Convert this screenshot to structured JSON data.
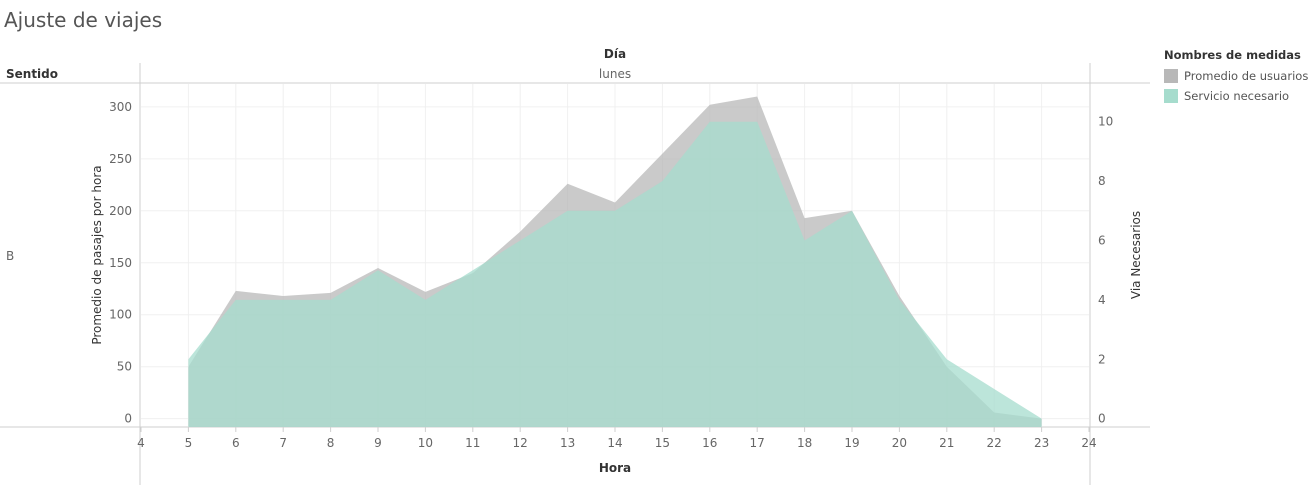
{
  "title": "Ajuste de viajes",
  "header": {
    "column_field": "Día",
    "column_value": "lunes",
    "row_field": "Sentido",
    "row_value": "B"
  },
  "legend": {
    "title": "Nombres de medidas",
    "items": [
      {
        "label": "Promedio de usuarios",
        "color": "#b8b8b8"
      },
      {
        "label": "Servicio necesario",
        "color": "#a6dccd"
      }
    ]
  },
  "chart_data": {
    "type": "area",
    "xlabel": "Hora",
    "ylabel_left": "Promedio de pasajes por hora",
    "ylabel_right": "Via Necesarios",
    "x_ticks": [
      4,
      5,
      6,
      7,
      8,
      9,
      10,
      11,
      12,
      13,
      14,
      15,
      16,
      17,
      18,
      19,
      20,
      21,
      22,
      23,
      24
    ],
    "y_left_ticks": [
      0,
      50,
      100,
      150,
      200,
      250,
      300
    ],
    "y_right_ticks": [
      0,
      2,
      4,
      6,
      8,
      10
    ],
    "x_range": [
      4,
      24
    ],
    "y_left_range": [
      -8,
      322
    ],
    "y_right_range": [
      -0.28,
      11.27
    ],
    "series": [
      {
        "name": "Promedio de usuarios",
        "axis": "left",
        "color": "#b8b8b8",
        "x": [
          5,
          6,
          7,
          8,
          9,
          10,
          11,
          12,
          13,
          14,
          15,
          16,
          17,
          18,
          19,
          20,
          21,
          22,
          23
        ],
        "values": [
          50,
          123,
          118,
          121,
          145,
          122,
          140,
          180,
          226,
          208,
          255,
          302,
          310,
          193,
          200,
          118,
          50,
          6,
          0
        ]
      },
      {
        "name": "Servicio necesario",
        "axis": "right",
        "color": "#a6dccd",
        "x": [
          5,
          6,
          7,
          8,
          9,
          10,
          11,
          12,
          13,
          14,
          15,
          16,
          17,
          18,
          19,
          20,
          21,
          22,
          23
        ],
        "values": [
          2,
          4,
          4,
          4,
          5,
          4,
          5,
          6,
          7,
          7,
          8,
          10,
          10,
          6,
          7,
          4,
          2,
          1,
          0
        ]
      }
    ]
  }
}
